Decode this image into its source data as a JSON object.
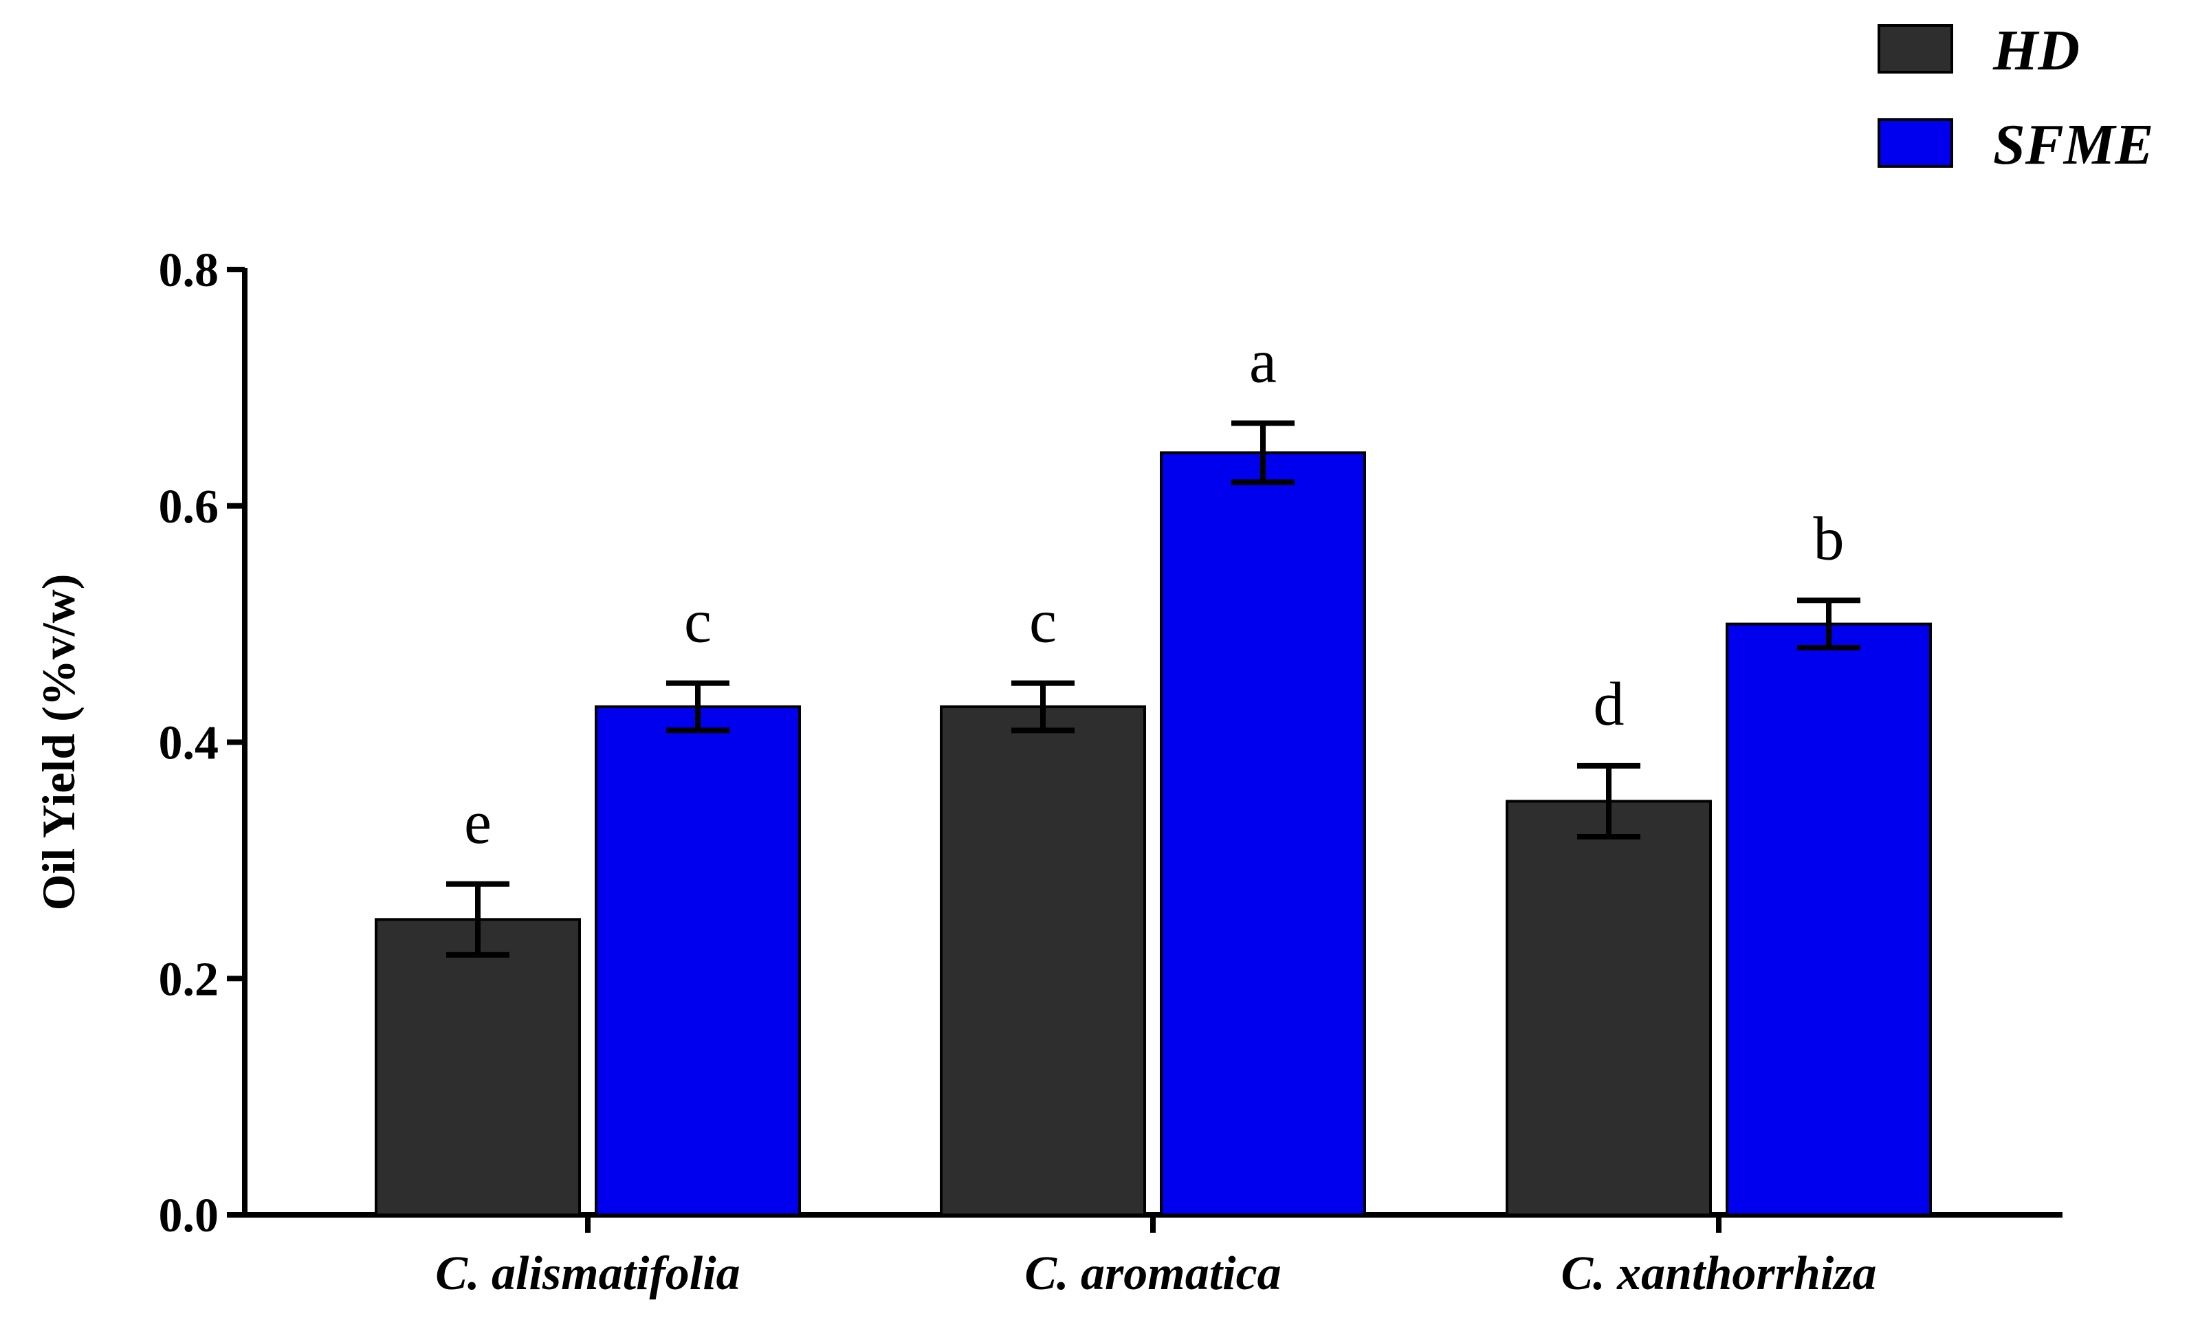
{
  "chart_data": {
    "type": "bar",
    "title": "",
    "xlabel": "",
    "ylabel": "Oil Yield (%v/w)",
    "ylim": [
      0,
      0.8
    ],
    "yticks": [
      "0.0",
      "0.2",
      "0.4",
      "0.6",
      "0.8"
    ],
    "ytick_values": [
      0,
      0.2,
      0.4,
      0.6,
      0.8
    ],
    "categories": [
      "C. alismatifolia",
      "C. aromatica",
      "C. xanthorrhiza"
    ],
    "legend_position": "top-right",
    "series": [
      {
        "name": "HD",
        "color": "#2e2e2e",
        "values": [
          0.25,
          0.43,
          0.35
        ],
        "errors": [
          0.03,
          0.02,
          0.03
        ],
        "letters": [
          "e",
          "c",
          "d"
        ]
      },
      {
        "name": "SFME",
        "color": "#0000ee",
        "values": [
          0.43,
          0.645,
          0.5
        ],
        "errors": [
          0.02,
          0.025,
          0.02
        ],
        "letters": [
          "c",
          "a",
          "b"
        ]
      }
    ]
  }
}
